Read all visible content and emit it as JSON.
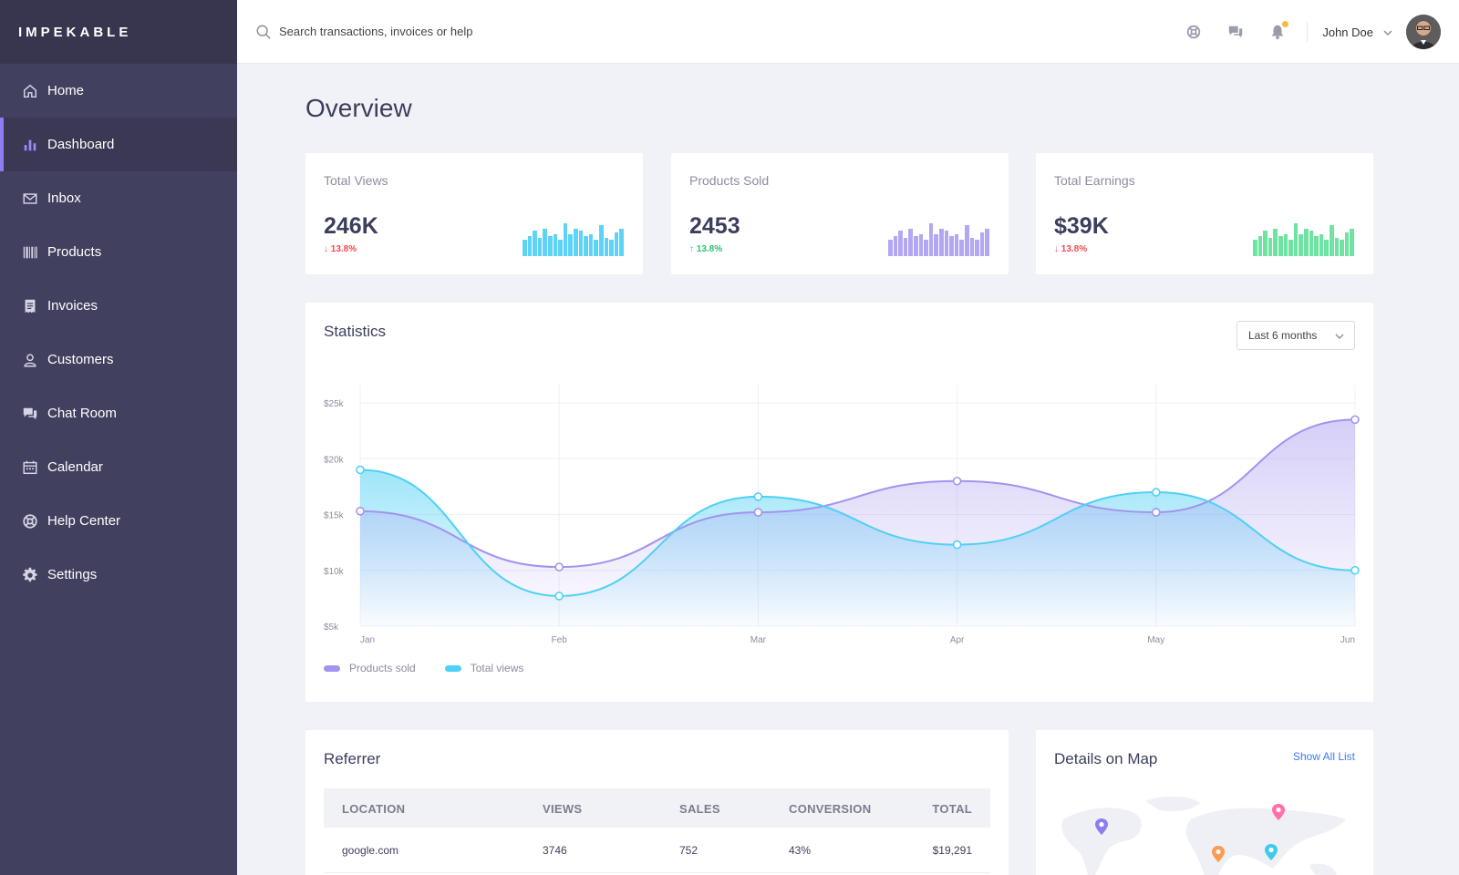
{
  "brand": "IMPEKABLE",
  "nav": [
    {
      "label": "Home",
      "icon": "home-icon"
    },
    {
      "label": "Dashboard",
      "icon": "bar-chart-icon",
      "active": true
    },
    {
      "label": "Inbox",
      "icon": "mail-icon"
    },
    {
      "label": "Products",
      "icon": "barcode-icon"
    },
    {
      "label": "Invoices",
      "icon": "invoice-icon"
    },
    {
      "label": "Customers",
      "icon": "user-icon"
    },
    {
      "label": "Chat Room",
      "icon": "chat-icon"
    },
    {
      "label": "Calendar",
      "icon": "calendar-icon"
    },
    {
      "label": "Help Center",
      "icon": "lifebuoy-icon"
    },
    {
      "label": "Settings",
      "icon": "gear-icon"
    }
  ],
  "search": {
    "placeholder": "Search transactions, invoices or help"
  },
  "user": {
    "name": "John Doe"
  },
  "page_title": "Overview",
  "stats": [
    {
      "title": "Total Views",
      "value": "246K",
      "change": "13.8%",
      "direction": "down",
      "color": "#5fd3f7",
      "bars": [
        0.45,
        0.55,
        0.7,
        0.5,
        0.75,
        0.55,
        0.6,
        0.45,
        0.9,
        0.6,
        0.75,
        0.7,
        0.55,
        0.6,
        0.45,
        0.85,
        0.5,
        0.45,
        0.65,
        0.75
      ]
    },
    {
      "title": "Products Sold",
      "value": "2453",
      "change": "13.8%",
      "direction": "up",
      "color": "#b3a7f4",
      "bars": [
        0.45,
        0.55,
        0.7,
        0.5,
        0.75,
        0.55,
        0.6,
        0.45,
        0.9,
        0.6,
        0.75,
        0.7,
        0.55,
        0.6,
        0.45,
        0.85,
        0.5,
        0.45,
        0.65,
        0.75
      ]
    },
    {
      "title": "Total Earnings",
      "value": "$39K",
      "change": "13.8%",
      "direction": "down",
      "color": "#6fe3a1",
      "bars": [
        0.45,
        0.55,
        0.7,
        0.5,
        0.75,
        0.55,
        0.6,
        0.45,
        0.9,
        0.6,
        0.75,
        0.7,
        0.55,
        0.6,
        0.45,
        0.85,
        0.5,
        0.45,
        0.65,
        0.75
      ]
    }
  ],
  "statistics": {
    "title": "Statistics",
    "period": "Last 6 months"
  },
  "chart_data": {
    "type": "area",
    "categories": [
      "Jan",
      "Feb",
      "Mar",
      "Apr",
      "May",
      "Jun"
    ],
    "y_ticks": [
      "$5k",
      "$10k",
      "$15k",
      "$20k",
      "$25k"
    ],
    "ylim": [
      5000,
      25000
    ],
    "series": [
      {
        "name": "Products sold",
        "color": "#a393ef",
        "values": [
          15300,
          10300,
          15200,
          18000,
          15200,
          23500
        ]
      },
      {
        "name": "Total views",
        "color": "#4fd0f5",
        "values": [
          19000,
          7700,
          16600,
          12300,
          17000,
          10000
        ]
      }
    ],
    "legend": "bottom-left",
    "grid": true
  },
  "referrer": {
    "title": "Referrer",
    "columns": [
      "LOCATION",
      "VIEWS",
      "SALES",
      "CONVERSION",
      "TOTAL"
    ],
    "rows": [
      [
        "google.com",
        "3746",
        "752",
        "43%",
        "$19,291"
      ]
    ]
  },
  "map": {
    "title": "Details on Map",
    "link": "Show All List",
    "pin_colors": [
      "#8e7cf0",
      "#ff6fa8",
      "#ff9a52",
      "#3fcbeb"
    ]
  }
}
